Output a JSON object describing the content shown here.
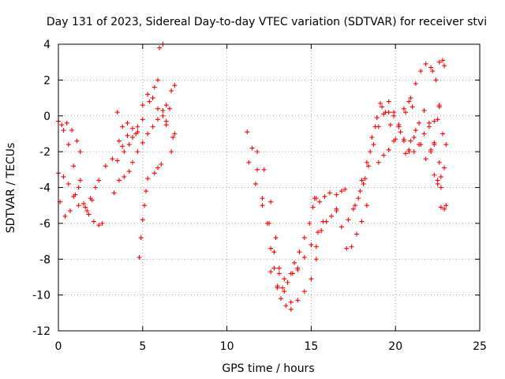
{
  "chart_data": {
    "type": "scatter",
    "title": "Day 131 of 2023, Sidereal Day-to-day VTEC variation (SDTVAR) for receiver stvi",
    "xlabel": "GPS time / hours",
    "ylabel": "SDTVAR / TECUs",
    "xlim": [
      0,
      25
    ],
    "ylim": [
      -12,
      4
    ],
    "xticks": [
      "0",
      "5",
      "10",
      "15",
      "20",
      "25"
    ],
    "yticks": [
      "4",
      "2",
      "0",
      "-2",
      "-4",
      "-6",
      "-8",
      "-10",
      "-12"
    ],
    "grid": true,
    "marker": "+",
    "color": "#ff0000",
    "series": [
      {
        "x": [
          0.0,
          0.3,
          0.6,
          0.9,
          1.2,
          1.5,
          1.8,
          2.1,
          2.4,
          2.6
        ],
        "y": [
          -0.3,
          -0.8,
          -1.6,
          -2.8,
          -4.0,
          -4.9,
          -5.5,
          -5.9,
          -6.1,
          -6.0
        ]
      },
      {
        "x": [
          0.0,
          0.3,
          0.6,
          0.9,
          1.2,
          1.6,
          2.0,
          2.4,
          2.8,
          3.2,
          3.5,
          3.9,
          4.2,
          4.6,
          5.0,
          5.4,
          5.7,
          5.9
        ],
        "y": [
          -3.2,
          -3.4,
          -3.8,
          -4.5,
          -5.0,
          -5.1,
          -4.7,
          -3.6,
          -2.8,
          -2.4,
          -2.5,
          -2.0,
          -1.6,
          -1.0,
          -0.2,
          0.8,
          1.6,
          2.0
        ]
      },
      {
        "x": [
          0.1,
          0.4,
          0.7,
          1.0,
          1.3
        ],
        "y": [
          -4.8,
          -5.6,
          -5.3,
          -4.4,
          -3.6
        ]
      },
      {
        "x": [
          0.2,
          0.5,
          0.8,
          1.1,
          1.3
        ],
        "y": [
          -0.5,
          -0.4,
          -0.8,
          -1.4,
          -2.0
        ]
      },
      {
        "x": [
          1.7,
          1.9,
          2.2
        ],
        "y": [
          -5.3,
          -4.6,
          -4.0
        ]
      },
      {
        "x": [
          3.3,
          3.6,
          3.9,
          4.2,
          4.4,
          4.7,
          5.0,
          5.3,
          5.6,
          5.9,
          6.2,
          6.4
        ],
        "y": [
          -4.3,
          -3.6,
          -3.4,
          -3.1,
          -2.6,
          -2.0,
          -1.5,
          -1.0,
          -0.6,
          -0.2,
          0.3,
          0.6
        ]
      },
      {
        "x": [
          3.5,
          3.8,
          4.1,
          4.4,
          4.7,
          5.0,
          5.3,
          5.6,
          5.9,
          6.2,
          6.4
        ],
        "y": [
          0.2,
          -0.6,
          -0.4,
          -1.2,
          -0.6,
          0.6,
          1.2,
          1.0,
          0.4,
          0.0,
          -0.3
        ]
      },
      {
        "x": [
          3.6,
          3.8,
          4.1,
          4.4,
          4.7
        ],
        "y": [
          -1.4,
          -1.7,
          -1.1,
          -0.7,
          -0.9
        ]
      },
      {
        "x": [
          4.8,
          4.9,
          5.0,
          5.1,
          5.2,
          5.3
        ],
        "y": [
          -7.9,
          -6.8,
          -5.8,
          -5.0,
          -4.2,
          -3.5
        ]
      },
      {
        "x": [
          5.7,
          5.9,
          6.1,
          6.4,
          6.6
        ],
        "y": [
          -3.2,
          -2.9,
          -2.7,
          -0.5,
          0.4
        ]
      },
      {
        "x": [
          6.0,
          6.2
        ],
        "y": [
          3.8,
          4.0
        ]
      },
      {
        "x": [
          6.7,
          6.8,
          6.9
        ],
        "y": [
          -2.0,
          -1.2,
          -1.0
        ]
      },
      {
        "x": [
          6.7,
          6.9
        ],
        "y": [
          1.4,
          1.7
        ]
      },
      {
        "x": [
          11.2,
          11.5,
          11.8,
          12.1,
          12.4,
          12.6,
          12.8,
          13.0,
          13.2,
          13.5,
          13.8
        ],
        "y": [
          -0.9,
          -1.8,
          -3.0,
          -4.6,
          -6.0,
          -7.4,
          -8.5,
          -9.5,
          -10.2,
          -10.6,
          -10.8
        ]
      },
      {
        "x": [
          11.3,
          11.7,
          12.1,
          12.5,
          12.8,
          13.1,
          13.4,
          13.8,
          14.2,
          14.6,
          15.0,
          15.3
        ],
        "y": [
          -2.6,
          -3.8,
          -5.0,
          -6.0,
          -7.6,
          -8.8,
          -9.8,
          -10.4,
          -10.3,
          -9.8,
          -9.1,
          -8.0
        ]
      },
      {
        "x": [
          11.8,
          12.2,
          12.6,
          12.9,
          13.1,
          13.3,
          13.6,
          13.9,
          14.2
        ],
        "y": [
          -2.0,
          -3.0,
          -4.8,
          -6.8,
          -8.5,
          -9.6,
          -9.3,
          -8.8,
          -8.6
        ]
      },
      {
        "x": [
          12.6,
          13.0,
          13.4,
          13.8,
          14.2,
          14.6,
          15.0,
          15.4,
          15.7
        ],
        "y": [
          -8.7,
          -9.6,
          -9.1,
          -8.8,
          -8.5,
          -7.9,
          -7.2,
          -6.5,
          -5.9
        ]
      },
      {
        "x": [
          14.0,
          14.3,
          14.6,
          14.9,
          15.1,
          15.3
        ],
        "y": [
          -8.2,
          -7.6,
          -6.8,
          -6.0,
          -5.1,
          -4.6
        ]
      },
      {
        "x": [
          15.3,
          15.6,
          15.9,
          16.2,
          16.5
        ],
        "y": [
          -7.3,
          -6.4,
          -5.9,
          -5.6,
          -5.2
        ]
      },
      {
        "x": [
          15.2,
          15.5,
          15.8,
          16.1
        ],
        "y": [
          -4.6,
          -4.8,
          -4.5,
          -4.3
        ]
      },
      {
        "x": [
          16.5,
          16.8,
          17.1,
          17.4,
          17.7,
          18.0,
          18.3
        ],
        "y": [
          -5.3,
          -6.2,
          -7.4,
          -7.3,
          -6.6,
          -5.9,
          -5.0
        ]
      },
      {
        "x": [
          16.5,
          16.8,
          17.0
        ],
        "y": [
          -4.4,
          -4.2,
          -4.1
        ]
      },
      {
        "x": [
          17.2,
          17.5,
          17.8,
          18.1,
          18.4,
          18.7,
          19.0,
          19.3,
          19.6,
          19.9,
          20.2,
          20.5,
          20.8,
          21.1,
          21.4,
          21.7,
          22.0,
          22.3,
          22.5
        ],
        "y": [
          -5.8,
          -5.2,
          -4.6,
          -3.8,
          -2.8,
          -1.6,
          -0.6,
          0.1,
          0.2,
          0.0,
          -0.6,
          -1.3,
          -1.9,
          -2.0,
          -1.6,
          -1.0,
          -0.6,
          -0.3,
          -0.2
        ]
      },
      {
        "x": [
          17.6,
          17.9,
          18.2,
          18.5,
          18.8,
          19.1,
          19.4,
          19.7,
          20.0,
          20.3,
          20.6,
          20.9,
          21.2,
          21.5,
          21.8,
          22.1,
          22.4,
          22.6
        ],
        "y": [
          -5.0,
          -4.2,
          -3.5,
          -2.0,
          -0.6,
          0.7,
          0.2,
          -0.5,
          -1.3,
          -0.9,
          0.2,
          1.0,
          1.8,
          2.5,
          2.9,
          2.7,
          2.0,
          0.5
        ]
      },
      {
        "x": [
          18.0,
          18.3,
          18.6,
          18.9,
          19.2
        ],
        "y": [
          -3.6,
          -2.6,
          -1.2,
          -0.1,
          0.5
        ]
      },
      {
        "x": [
          19.0,
          19.3,
          19.6,
          19.9,
          20.2,
          20.5,
          20.8,
          21.0
        ],
        "y": [
          -2.6,
          -2.2,
          -1.9,
          -1.4,
          -0.5,
          0.4,
          0.8,
          0.5
        ]
      },
      {
        "x": [
          19.6,
          19.9,
          20.2,
          20.5,
          20.8,
          21.1,
          21.4,
          21.7,
          22.0,
          22.3,
          22.6
        ],
        "y": [
          0.8,
          0.2,
          -0.6,
          -1.4,
          -2.0,
          -1.2,
          -0.4,
          0.3,
          -0.4,
          -1.5,
          -2.6
        ]
      },
      {
        "x": [
          20.6,
          20.9,
          21.2,
          21.5,
          21.8,
          22.1,
          22.3,
          22.5,
          22.7
        ],
        "y": [
          -2.1,
          -1.4,
          -0.8,
          -1.6,
          -2.4,
          -2.0,
          -1.6,
          -3.6,
          -4.0
        ]
      },
      {
        "x": [
          22.1,
          22.3,
          22.5,
          22.7,
          22.9
        ],
        "y": [
          -1.9,
          -3.3,
          -3.8,
          -3.4,
          -2.9
        ]
      },
      {
        "x": [
          22.2,
          22.4,
          22.6,
          22.8,
          23.0
        ],
        "y": [
          2.5,
          2.0,
          0.6,
          -1.0,
          -1.6
        ]
      },
      {
        "x": [
          22.6,
          22.8,
          22.9
        ],
        "y": [
          3.0,
          3.1,
          2.8
        ]
      },
      {
        "x": [
          22.7,
          22.9,
          23.0
        ],
        "y": [
          -5.1,
          -5.2,
          -5.0
        ]
      }
    ]
  }
}
